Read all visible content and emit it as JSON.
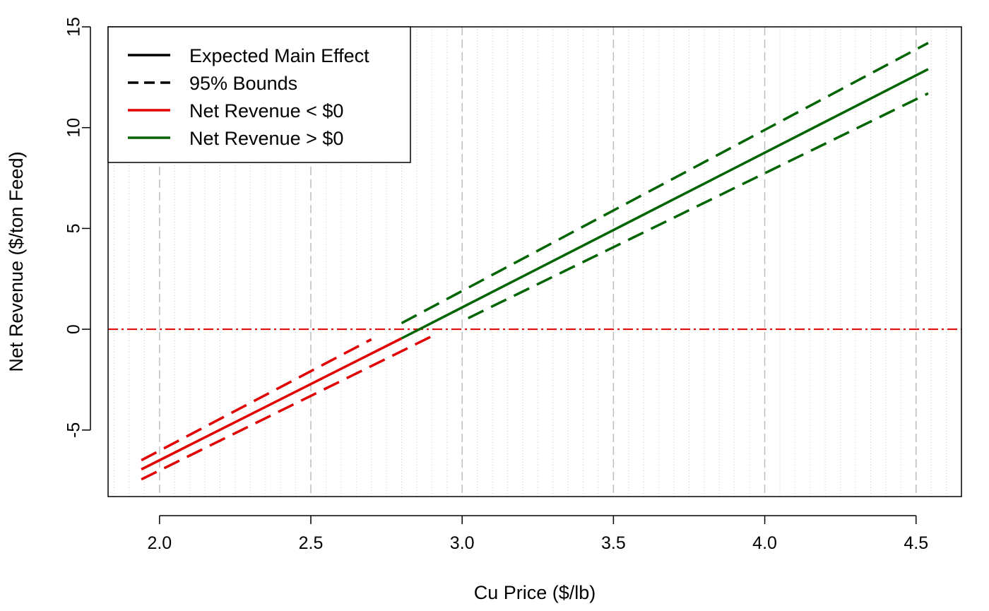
{
  "chart_data": {
    "type": "line",
    "title": "",
    "xlabel": "Cu Price ($/lb)",
    "ylabel": "Net Revenue ($/ton Feed)",
    "xlim": [
      1.83,
      4.65
    ],
    "ylim": [
      -8.3,
      15
    ],
    "xticks": [
      2.0,
      2.5,
      3.0,
      3.5,
      4.0,
      4.5
    ],
    "xtick_labels": [
      "2.0",
      "2.5",
      "3.0",
      "3.5",
      "4.0",
      "4.5"
    ],
    "yticks": [
      -5,
      0,
      5,
      10,
      15
    ],
    "ytick_labels": [
      "-5",
      "0",
      "5",
      "10",
      "15"
    ],
    "grid": {
      "major_x": [
        2.0,
        2.5,
        3.0,
        3.5,
        4.0,
        4.5
      ],
      "minor_x_step": 0.05,
      "style": "dotted vertical minor, dashed vertical major"
    },
    "reference_line": {
      "y": 0,
      "color": "#e00000",
      "style": "dash-dot"
    },
    "legend": {
      "position": "top-left",
      "items": [
        {
          "label": "Expected Main Effect",
          "color": "#000000",
          "style": "solid"
        },
        {
          "label": "95% Bounds",
          "color": "#000000",
          "style": "dashed"
        },
        {
          "label": "Net Revenue < $0",
          "color": "#e00000",
          "style": "solid"
        },
        {
          "label": "Net Revenue > $0",
          "color": "#006400",
          "style": "solid"
        }
      ]
    },
    "series": [
      {
        "name": "Expected Main Effect",
        "group": "Net Revenue < $0",
        "color": "#e00000",
        "style": "solid",
        "x": [
          1.94,
          2.8
        ],
        "y": [
          -6.95,
          -0.45
        ]
      },
      {
        "name": "95% Bounds",
        "group": "Net Revenue < $0",
        "color": "#e00000",
        "style": "dashed",
        "x": [
          1.94,
          2.7
        ],
        "y": [
          -6.5,
          -0.5
        ]
      },
      {
        "name": "95% Bounds",
        "group": "Net Revenue < $0",
        "color": "#e00000",
        "style": "dashed",
        "x": [
          1.94,
          2.92
        ],
        "y": [
          -7.45,
          -0.2
        ]
      },
      {
        "name": "Expected Main Effect",
        "group": "Net Revenue > $0",
        "color": "#006400",
        "style": "solid",
        "x": [
          2.8,
          4.54
        ],
        "y": [
          -0.45,
          12.9
        ]
      },
      {
        "name": "95% Bounds",
        "group": "Net Revenue > $0",
        "color": "#006400",
        "style": "dashed",
        "x": [
          2.8,
          4.54
        ],
        "y": [
          0.3,
          14.2
        ]
      },
      {
        "name": "95% Bounds",
        "group": "Net Revenue > $0",
        "color": "#006400",
        "style": "dashed",
        "x": [
          3.02,
          4.54
        ],
        "y": [
          0.55,
          11.7
        ]
      }
    ]
  }
}
